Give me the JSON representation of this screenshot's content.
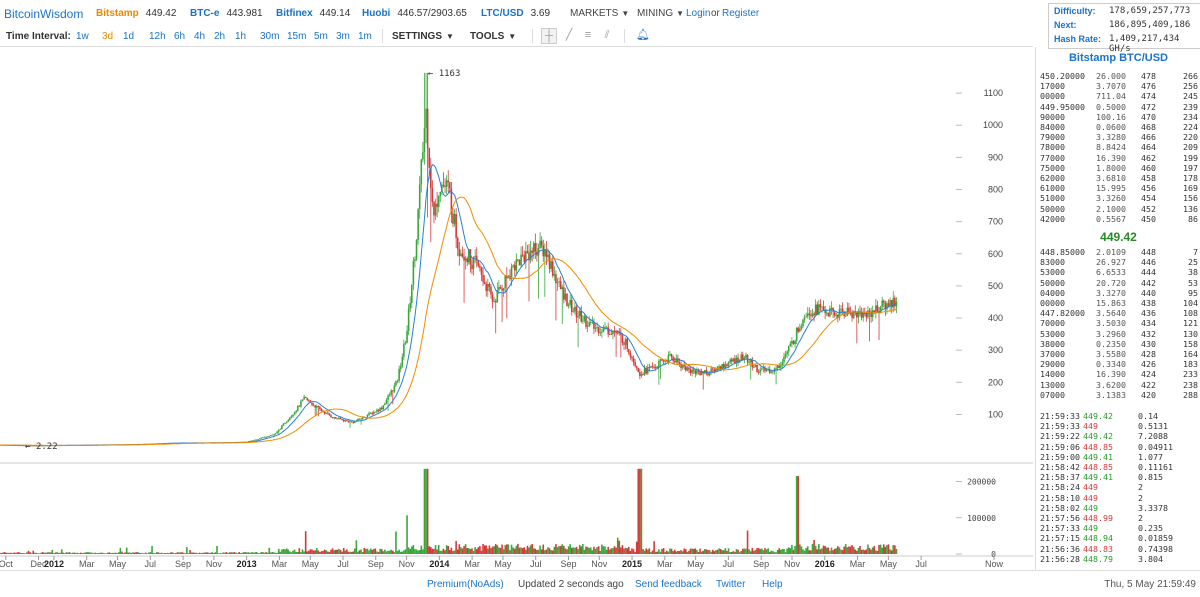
{
  "header": {
    "logo": "BitcoinWisdom",
    "tickers": [
      {
        "name": "Bitstamp",
        "price": "449.42",
        "active": true
      },
      {
        "name": "BTC-e",
        "price": "443.981",
        "active": false
      },
      {
        "name": "Bitfinex",
        "price": "449.14",
        "active": false
      },
      {
        "name": "Huobi",
        "price": "446.57/2903.65",
        "active": false
      },
      {
        "name": "LTC/USD",
        "price": "3.69",
        "active": false
      }
    ],
    "menus": [
      "MARKETS",
      "MINING"
    ],
    "login": "Login",
    "or": "or",
    "register": "Register"
  },
  "info": {
    "difficulty_label": "Difficulty:",
    "difficulty": "178,659,257,773",
    "next_label": "Next:",
    "next": "186,895,409,186",
    "hashrate_label": "Hash Rate:",
    "hashrate": "1,409,217,434 GH/s"
  },
  "toolbar": {
    "label": "Time Interval:",
    "intervals": [
      "1w",
      "3d",
      "1d",
      "12h",
      "6h",
      "4h",
      "2h",
      "1h",
      "30m",
      "15m",
      "5m",
      "3m",
      "1m"
    ],
    "active_interval": "3d",
    "settings": "SETTINGS",
    "tools": "TOOLS",
    "icons": [
      "crosshair-icon",
      "line-tool-icon",
      "parallel-lines-icon",
      "fibonacci-icon",
      "alert-bell-icon"
    ]
  },
  "sidebar": {
    "title": "Bitstamp BTC/USD",
    "last_price": "449.42",
    "asks": [
      {
        "price": "450.20000",
        "amount": "26.000",
        "level": "478",
        "total": "266"
      },
      {
        "price": "17000",
        "amount": "3.7070",
        "level": "476",
        "total": "256"
      },
      {
        "price": "00000",
        "amount": "711.04",
        "level": "474",
        "total": "245"
      },
      {
        "price": "449.95000",
        "amount": "0.5000",
        "level": "472",
        "total": "239"
      },
      {
        "price": "90000",
        "amount": "100.16",
        "level": "470",
        "total": "234"
      },
      {
        "price": "84000",
        "amount": "0.0600",
        "level": "468",
        "total": "224"
      },
      {
        "price": "79000",
        "amount": "3.3280",
        "level": "466",
        "total": "220"
      },
      {
        "price": "78000",
        "amount": "8.8424",
        "level": "464",
        "total": "209"
      },
      {
        "price": "77000",
        "amount": "16.390",
        "level": "462",
        "total": "199"
      },
      {
        "price": "75000",
        "amount": "1.8000",
        "level": "460",
        "total": "197"
      },
      {
        "price": "62000",
        "amount": "3.6810",
        "level": "458",
        "total": "178"
      },
      {
        "price": "61000",
        "amount": "15.995",
        "level": "456",
        "total": "169"
      },
      {
        "price": "51000",
        "amount": "3.3260",
        "level": "454",
        "total": "156"
      },
      {
        "price": "50000",
        "amount": "2.1000",
        "level": "452",
        "total": "136"
      },
      {
        "price": "42000",
        "amount": "0.5567",
        "level": "450",
        "total": "86"
      }
    ],
    "bids": [
      {
        "price": "448.85000",
        "amount": "2.0109",
        "level": "448",
        "total": "7"
      },
      {
        "price": "83000",
        "amount": "26.927",
        "level": "446",
        "total": "25"
      },
      {
        "price": "53000",
        "amount": "6.6533",
        "level": "444",
        "total": "38"
      },
      {
        "price": "50000",
        "amount": "20.720",
        "level": "442",
        "total": "53"
      },
      {
        "price": "04000",
        "amount": "3.3270",
        "level": "440",
        "total": "95"
      },
      {
        "price": "00000",
        "amount": "15.863",
        "level": "438",
        "total": "104"
      },
      {
        "price": "447.82000",
        "amount": "3.5640",
        "level": "436",
        "total": "108"
      },
      {
        "price": "70000",
        "amount": "3.5030",
        "level": "434",
        "total": "121"
      },
      {
        "price": "53000",
        "amount": "3.2960",
        "level": "432",
        "total": "130"
      },
      {
        "price": "38000",
        "amount": "0.2350",
        "level": "430",
        "total": "158"
      },
      {
        "price": "37000",
        "amount": "3.5580",
        "level": "428",
        "total": "164"
      },
      {
        "price": "29000",
        "amount": "0.3340",
        "level": "426",
        "total": "183"
      },
      {
        "price": "14000",
        "amount": "16.390",
        "level": "424",
        "total": "233"
      },
      {
        "price": "13000",
        "amount": "3.6200",
        "level": "422",
        "total": "238"
      },
      {
        "price": "07000",
        "amount": "3.1383",
        "level": "420",
        "total": "288"
      }
    ],
    "trades": [
      {
        "time": "21:59:33",
        "price": "449.42",
        "side": "buy",
        "amount": "0.14"
      },
      {
        "time": "21:59:33",
        "price": "449",
        "side": "sell",
        "amount": "0.5131"
      },
      {
        "time": "21:59:22",
        "price": "449.42",
        "side": "buy",
        "amount": "7.2088"
      },
      {
        "time": "21:59:06",
        "price": "448.85",
        "side": "sell",
        "amount": "0.04911"
      },
      {
        "time": "21:59:00",
        "price": "449.41",
        "side": "buy",
        "amount": "1.077"
      },
      {
        "time": "21:58:42",
        "price": "448.85",
        "side": "sell",
        "amount": "0.11161"
      },
      {
        "time": "21:58:37",
        "price": "449.41",
        "side": "buy",
        "amount": "0.815"
      },
      {
        "time": "21:58:24",
        "price": "449",
        "side": "sell",
        "amount": "2"
      },
      {
        "time": "21:58:10",
        "price": "449",
        "side": "sell",
        "amount": "2"
      },
      {
        "time": "21:58:02",
        "price": "449",
        "side": "buy",
        "amount": "3.3378"
      },
      {
        "time": "21:57:56",
        "price": "448.99",
        "side": "sell",
        "amount": "2"
      },
      {
        "time": "21:57:33",
        "price": "449",
        "side": "buy",
        "amount": "0.235"
      },
      {
        "time": "21:57:15",
        "price": "448.94",
        "side": "buy",
        "amount": "0.01859"
      },
      {
        "time": "21:56:36",
        "price": "448.83",
        "side": "sell",
        "amount": "0.74398"
      },
      {
        "time": "21:56:28",
        "price": "448.79",
        "side": "buy",
        "amount": "3.804"
      }
    ]
  },
  "chart_data": {
    "type": "candlestick",
    "price_axis": {
      "ticks": [
        100,
        200,
        300,
        400,
        500,
        600,
        700,
        800,
        900,
        1000,
        1100
      ],
      "range": [
        -20,
        1175
      ]
    },
    "volume_axis": {
      "ticks": [
        0,
        100000,
        200000
      ],
      "tick_labels": [
        "0",
        "100000",
        "200000"
      ],
      "range": [
        0,
        240000
      ]
    },
    "time_axis": {
      "range": [
        2011.72,
        2016.65
      ],
      "ticks": [
        {
          "label": "Oct",
          "t": 2011.75
        },
        {
          "label": "Dec",
          "t": 2011.92
        },
        {
          "label": "2012",
          "t": 2012.0
        },
        {
          "label": "Mar",
          "t": 2012.17
        },
        {
          "label": "May",
          "t": 2012.33
        },
        {
          "label": "Jul",
          "t": 2012.5
        },
        {
          "label": "Sep",
          "t": 2012.67
        },
        {
          "label": "Nov",
          "t": 2012.83
        },
        {
          "label": "2013",
          "t": 2013.0
        },
        {
          "label": "Mar",
          "t": 2013.17
        },
        {
          "label": "May",
          "t": 2013.33
        },
        {
          "label": "Jul",
          "t": 2013.5
        },
        {
          "label": "Sep",
          "t": 2013.67
        },
        {
          "label": "Nov",
          "t": 2013.83
        },
        {
          "label": "2014",
          "t": 2014.0
        },
        {
          "label": "Mar",
          "t": 2014.17
        },
        {
          "label": "May",
          "t": 2014.33
        },
        {
          "label": "Jul",
          "t": 2014.5
        },
        {
          "label": "Sep",
          "t": 2014.67
        },
        {
          "label": "Nov",
          "t": 2014.83
        },
        {
          "label": "2015",
          "t": 2015.0
        },
        {
          "label": "Mar",
          "t": 2015.17
        },
        {
          "label": "May",
          "t": 2015.33
        },
        {
          "label": "Jul",
          "t": 2015.5
        },
        {
          "label": "Sep",
          "t": 2015.67
        },
        {
          "label": "Nov",
          "t": 2015.83
        },
        {
          "label": "2016",
          "t": 2016.0
        },
        {
          "label": "Mar",
          "t": 2016.17
        },
        {
          "label": "May",
          "t": 2016.33
        },
        {
          "label": "Jul",
          "t": 2016.5
        },
        {
          "label": "Now",
          "t": 2016.6
        }
      ]
    },
    "annotations": [
      {
        "text": "1163",
        "t": 2013.93,
        "price": 1163
      },
      {
        "text": "2.22",
        "t": 2011.84,
        "price": 2.22
      }
    ],
    "price_keypoints": [
      [
        2011.72,
        5
      ],
      [
        2011.9,
        3
      ],
      [
        2012.2,
        5
      ],
      [
        2012.45,
        7
      ],
      [
        2012.6,
        11
      ],
      [
        2012.85,
        12
      ],
      [
        2013.0,
        14
      ],
      [
        2013.15,
        40
      ],
      [
        2013.25,
        110
      ],
      [
        2013.3,
        150
      ],
      [
        2013.38,
        115
      ],
      [
        2013.45,
        90
      ],
      [
        2013.55,
        75
      ],
      [
        2013.7,
        120
      ],
      [
        2013.78,
        200
      ],
      [
        2013.83,
        350
      ],
      [
        2013.88,
        650
      ],
      [
        2013.93,
        1050
      ],
      [
        2013.97,
        700
      ],
      [
        2014.0,
        820
      ],
      [
        2014.05,
        800
      ],
      [
        2014.1,
        620
      ],
      [
        2014.2,
        560
      ],
      [
        2014.28,
        450
      ],
      [
        2014.38,
        560
      ],
      [
        2014.45,
        600
      ],
      [
        2014.5,
        620
      ],
      [
        2014.55,
        610
      ],
      [
        2014.62,
        500
      ],
      [
        2014.7,
        420
      ],
      [
        2014.8,
        370
      ],
      [
        2014.9,
        360
      ],
      [
        2014.96,
        330
      ],
      [
        2015.04,
        230
      ],
      [
        2015.12,
        250
      ],
      [
        2015.2,
        280
      ],
      [
        2015.3,
        235
      ],
      [
        2015.4,
        230
      ],
      [
        2015.5,
        260
      ],
      [
        2015.58,
        280
      ],
      [
        2015.66,
        235
      ],
      [
        2015.75,
        240
      ],
      [
        2015.83,
        320
      ],
      [
        2015.9,
        420
      ],
      [
        2015.97,
        430
      ],
      [
        2016.05,
        410
      ],
      [
        2016.12,
        420
      ],
      [
        2016.2,
        410
      ],
      [
        2016.28,
        430
      ],
      [
        2016.35,
        450
      ],
      [
        2016.38,
        449
      ]
    ]
  },
  "footer": {
    "premium": "Premium(NoAds)",
    "updated": "Updated 2 seconds ago",
    "feedback": "Send feedback",
    "twitter": "Twitter",
    "help": "Help",
    "datetime": "Thu, 5 May 21:59:49"
  }
}
